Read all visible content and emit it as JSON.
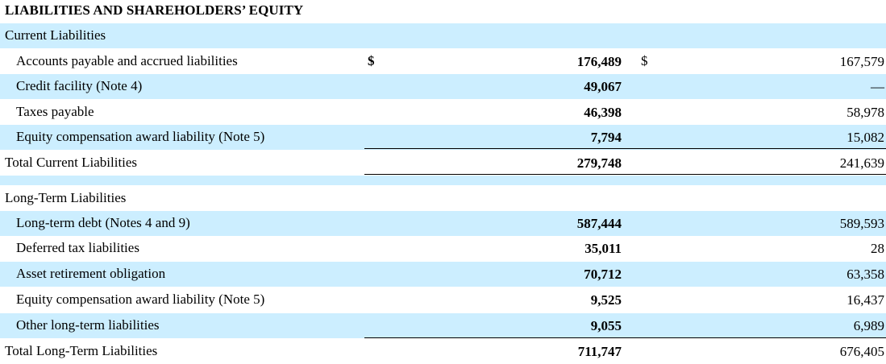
{
  "title": "LIABILITIES AND SHAREHOLDERS’ EQUITY",
  "current": {
    "header": "Current Liabilities",
    "rows": [
      {
        "label": "Accounts payable and accrued liabilities",
        "cur1": "$",
        "v1": "176,489",
        "cur2": "$",
        "v2": "167,579"
      },
      {
        "label": "Credit facility (Note 4)",
        "v1": "49,067",
        "v2": "—"
      },
      {
        "label": "Taxes payable",
        "v1": "46,398",
        "v2": "58,978"
      },
      {
        "label": "Equity compensation award liability (Note 5)",
        "v1": "7,794",
        "v2": "15,082"
      }
    ],
    "total": {
      "label": "Total Current Liabilities",
      "v1": "279,748",
      "v2": "241,639"
    }
  },
  "longterm": {
    "header": "Long-Term Liabilities",
    "rows": [
      {
        "label": "Long-term debt (Notes 4 and 9)",
        "v1": "587,444",
        "v2": "589,593"
      },
      {
        "label": "Deferred tax liabilities",
        "v1": "35,011",
        "v2": "28"
      },
      {
        "label": "Asset retirement obligation",
        "v1": "70,712",
        "v2": "63,358"
      },
      {
        "label": "Equity compensation award liability (Note 5)",
        "v1": "9,525",
        "v2": "16,437"
      },
      {
        "label": "Other long-term liabilities",
        "v1": "9,055",
        "v2": "6,989"
      }
    ],
    "total": {
      "label": "Total Long-Term Liabilities",
      "v1": "711,747",
      "v2": "676,405"
    }
  }
}
